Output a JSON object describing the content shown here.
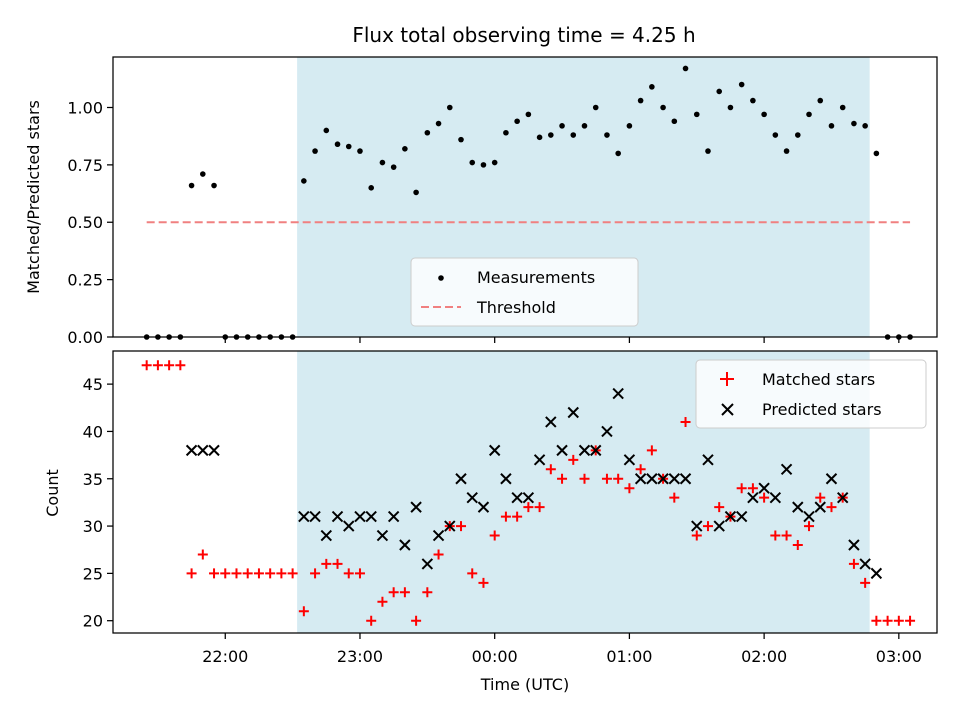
{
  "chart_data": [
    {
      "type": "scatter",
      "title": "Flux total observing time = 4.25 h",
      "ylabel": "Matched/Predicted stars",
      "xlabel": "",
      "ylim": [
        0.0,
        1.22
      ],
      "yticks": [
        "0.00",
        "0.25",
        "0.50",
        "0.75",
        "1.00"
      ],
      "ytick_values": [
        0.0,
        0.25,
        0.5,
        0.75,
        1.0
      ],
      "shaded_span": {
        "from": "22:32",
        "to": "02:47",
        "color": "#add8e6"
      },
      "legend_position": "lower-center",
      "series": [
        {
          "name": "Measurements",
          "marker": "dot",
          "color": "#000000",
          "points": [
            [
              "21:25",
              0.0
            ],
            [
              "21:30",
              0.0
            ],
            [
              "21:35",
              0.0
            ],
            [
              "21:40",
              0.0
            ],
            [
              "21:45",
              0.66
            ],
            [
              "21:50",
              0.71
            ],
            [
              "21:55",
              0.66
            ],
            [
              "22:00",
              0.0
            ],
            [
              "22:05",
              0.0
            ],
            [
              "22:10",
              0.0
            ],
            [
              "22:15",
              0.0
            ],
            [
              "22:20",
              0.0
            ],
            [
              "22:25",
              0.0
            ],
            [
              "22:30",
              0.0
            ],
            [
              "22:35",
              0.68
            ],
            [
              "22:40",
              0.81
            ],
            [
              "22:45",
              0.9
            ],
            [
              "22:50",
              0.84
            ],
            [
              "22:55",
              0.83
            ],
            [
              "23:00",
              0.81
            ],
            [
              "23:05",
              0.65
            ],
            [
              "23:10",
              0.76
            ],
            [
              "23:15",
              0.74
            ],
            [
              "23:20",
              0.82
            ],
            [
              "23:25",
              0.63
            ],
            [
              "23:30",
              0.89
            ],
            [
              "23:35",
              0.93
            ],
            [
              "23:40",
              1.0
            ],
            [
              "23:45",
              0.86
            ],
            [
              "23:50",
              0.76
            ],
            [
              "23:55",
              0.75
            ],
            [
              "00:00",
              0.76
            ],
            [
              "00:05",
              0.89
            ],
            [
              "00:10",
              0.94
            ],
            [
              "00:15",
              0.97
            ],
            [
              "00:20",
              0.87
            ],
            [
              "00:25",
              0.88
            ],
            [
              "00:30",
              0.92
            ],
            [
              "00:35",
              0.88
            ],
            [
              "00:40",
              0.92
            ],
            [
              "00:45",
              1.0
            ],
            [
              "00:50",
              0.88
            ],
            [
              "00:55",
              0.8
            ],
            [
              "01:00",
              0.92
            ],
            [
              "01:05",
              1.03
            ],
            [
              "01:10",
              1.09
            ],
            [
              "01:15",
              1.0
            ],
            [
              "01:20",
              0.94
            ],
            [
              "01:25",
              1.17
            ],
            [
              "01:30",
              0.97
            ],
            [
              "01:35",
              0.81
            ],
            [
              "01:40",
              1.07
            ],
            [
              "01:45",
              1.0
            ],
            [
              "01:50",
              1.1
            ],
            [
              "01:55",
              1.03
            ],
            [
              "02:00",
              0.97
            ],
            [
              "02:05",
              0.88
            ],
            [
              "02:10",
              0.81
            ],
            [
              "02:15",
              0.88
            ],
            [
              "02:20",
              0.97
            ],
            [
              "02:25",
              1.03
            ],
            [
              "02:30",
              0.92
            ],
            [
              "02:35",
              1.0
            ],
            [
              "02:40",
              0.93
            ],
            [
              "02:45",
              0.92
            ],
            [
              "02:50",
              0.8
            ],
            [
              "02:55",
              0.0
            ],
            [
              "03:00",
              0.0
            ],
            [
              "03:05",
              0.0
            ]
          ]
        },
        {
          "name": "Threshold",
          "marker": "dashed-line",
          "color": "#f08080",
          "points": [
            [
              "21:25",
              0.5
            ],
            [
              "03:05",
              0.5
            ]
          ]
        }
      ]
    },
    {
      "type": "scatter",
      "title": "",
      "ylabel": "Count",
      "xlabel": "Time (UTC)",
      "ylim": [
        18.7,
        48.5
      ],
      "yticks": [
        "20",
        "25",
        "30",
        "35",
        "40",
        "45"
      ],
      "ytick_values": [
        20,
        25,
        30,
        35,
        40,
        45
      ],
      "xticks": [
        "22:00",
        "23:00",
        "00:00",
        "01:00",
        "02:00",
        "03:00"
      ],
      "shaded_span": {
        "from": "22:32",
        "to": "02:47",
        "color": "#add8e6"
      },
      "legend_position": "upper-right",
      "series": [
        {
          "name": "Matched stars",
          "marker": "plus",
          "color": "#ff0000",
          "points": [
            [
              "21:25",
              47
            ],
            [
              "21:30",
              47
            ],
            [
              "21:35",
              47
            ],
            [
              "21:40",
              47
            ],
            [
              "21:45",
              25
            ],
            [
              "21:50",
              27
            ],
            [
              "21:55",
              25
            ],
            [
              "22:00",
              25
            ],
            [
              "22:05",
              25
            ],
            [
              "22:10",
              25
            ],
            [
              "22:15",
              25
            ],
            [
              "22:20",
              25
            ],
            [
              "22:25",
              25
            ],
            [
              "22:30",
              25
            ],
            [
              "22:35",
              21
            ],
            [
              "22:40",
              25
            ],
            [
              "22:45",
              26
            ],
            [
              "22:50",
              26
            ],
            [
              "22:55",
              25
            ],
            [
              "23:00",
              25
            ],
            [
              "23:05",
              20
            ],
            [
              "23:10",
              22
            ],
            [
              "23:15",
              23
            ],
            [
              "23:20",
              23
            ],
            [
              "23:25",
              20
            ],
            [
              "23:30",
              23
            ],
            [
              "23:35",
              27
            ],
            [
              "23:40",
              30
            ],
            [
              "23:45",
              30
            ],
            [
              "23:50",
              25
            ],
            [
              "23:55",
              24
            ],
            [
              "00:00",
              29
            ],
            [
              "00:05",
              31
            ],
            [
              "00:10",
              31
            ],
            [
              "00:15",
              32
            ],
            [
              "00:20",
              32
            ],
            [
              "00:25",
              36
            ],
            [
              "00:30",
              35
            ],
            [
              "00:35",
              37
            ],
            [
              "00:40",
              35
            ],
            [
              "00:45",
              38
            ],
            [
              "00:50",
              35
            ],
            [
              "00:55",
              35
            ],
            [
              "01:00",
              34
            ],
            [
              "01:05",
              36
            ],
            [
              "01:10",
              38
            ],
            [
              "01:15",
              35
            ],
            [
              "01:20",
              33
            ],
            [
              "01:25",
              41
            ],
            [
              "01:30",
              29
            ],
            [
              "01:35",
              30
            ],
            [
              "01:40",
              32
            ],
            [
              "01:45",
              31
            ],
            [
              "01:50",
              34
            ],
            [
              "01:55",
              34
            ],
            [
              "02:00",
              33
            ],
            [
              "02:05",
              29
            ],
            [
              "02:10",
              29
            ],
            [
              "02:15",
              28
            ],
            [
              "02:20",
              30
            ],
            [
              "02:25",
              33
            ],
            [
              "02:30",
              32
            ],
            [
              "02:35",
              33
            ],
            [
              "02:40",
              26
            ],
            [
              "02:45",
              24
            ],
            [
              "02:50",
              20
            ],
            [
              "02:55",
              20
            ],
            [
              "03:00",
              20
            ],
            [
              "03:05",
              20
            ]
          ]
        },
        {
          "name": "Predicted stars",
          "marker": "x",
          "color": "#000000",
          "points": [
            [
              "21:45",
              38
            ],
            [
              "21:50",
              38
            ],
            [
              "21:55",
              38
            ],
            [
              "22:35",
              31
            ],
            [
              "22:40",
              31
            ],
            [
              "22:45",
              29
            ],
            [
              "22:50",
              31
            ],
            [
              "22:55",
              30
            ],
            [
              "23:00",
              31
            ],
            [
              "23:05",
              31
            ],
            [
              "23:10",
              29
            ],
            [
              "23:15",
              31
            ],
            [
              "23:20",
              28
            ],
            [
              "23:25",
              32
            ],
            [
              "23:30",
              26
            ],
            [
              "23:35",
              29
            ],
            [
              "23:40",
              30
            ],
            [
              "23:45",
              35
            ],
            [
              "23:50",
              33
            ],
            [
              "23:55",
              32
            ],
            [
              "00:00",
              38
            ],
            [
              "00:05",
              35
            ],
            [
              "00:10",
              33
            ],
            [
              "00:15",
              33
            ],
            [
              "00:20",
              37
            ],
            [
              "00:25",
              41
            ],
            [
              "00:30",
              38
            ],
            [
              "00:35",
              42
            ],
            [
              "00:40",
              38
            ],
            [
              "00:45",
              38
            ],
            [
              "00:50",
              40
            ],
            [
              "00:55",
              44
            ],
            [
              "01:00",
              37
            ],
            [
              "01:05",
              35
            ],
            [
              "01:10",
              35
            ],
            [
              "01:15",
              35
            ],
            [
              "01:20",
              35
            ],
            [
              "01:25",
              35
            ],
            [
              "01:30",
              30
            ],
            [
              "01:35",
              37
            ],
            [
              "01:40",
              30
            ],
            [
              "01:45",
              31
            ],
            [
              "01:50",
              31
            ],
            [
              "01:55",
              33
            ],
            [
              "02:00",
              34
            ],
            [
              "02:05",
              33
            ],
            [
              "02:10",
              36
            ],
            [
              "02:15",
              32
            ],
            [
              "02:20",
              31
            ],
            [
              "02:25",
              32
            ],
            [
              "02:30",
              35
            ],
            [
              "02:35",
              33
            ],
            [
              "02:40",
              28
            ],
            [
              "02:45",
              26
            ],
            [
              "02:50",
              25
            ]
          ]
        }
      ]
    }
  ]
}
